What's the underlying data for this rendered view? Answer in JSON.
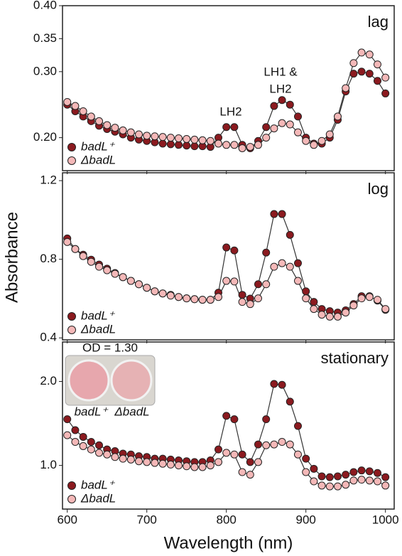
{
  "chart_data": [
    {
      "type": "line",
      "title": "lag",
      "annotations": [
        "LH2",
        "LH1 &",
        "LH2"
      ],
      "legend": "lower left",
      "x": [
        600,
        610,
        620,
        630,
        640,
        650,
        660,
        670,
        680,
        690,
        700,
        710,
        720,
        730,
        740,
        750,
        760,
        770,
        780,
        790,
        800,
        810,
        820,
        830,
        840,
        850,
        860,
        870,
        880,
        890,
        900,
        910,
        920,
        930,
        940,
        950,
        960,
        970,
        980,
        990,
        1000
      ],
      "xlim": [
        594,
        1011
      ],
      "ylim": [
        0.15,
        0.4
      ],
      "yticks": [
        {
          "value": 0.2,
          "label": "0.20"
        },
        {
          "value": 0.3,
          "label": "0.30"
        },
        0.35,
        {
          "value": 0.4,
          "label": "0.40"
        }
      ],
      "series": [
        {
          "name": "badL⁺",
          "color": "#8b1a1f",
          "values": [
            0.25,
            0.24,
            0.232,
            0.225,
            0.218,
            0.213,
            0.209,
            0.205,
            0.2,
            0.197,
            0.195,
            0.193,
            0.191,
            0.19,
            0.189,
            0.188,
            0.187,
            0.187,
            0.186,
            0.2,
            0.216,
            0.216,
            0.189,
            0.184,
            0.195,
            0.216,
            0.248,
            0.257,
            0.25,
            0.232,
            0.2,
            0.191,
            0.191,
            0.2,
            0.227,
            0.27,
            0.297,
            0.3,
            0.297,
            0.286,
            0.267
          ]
        },
        {
          "name": "ΔbadL",
          "color": "#f4b8b8",
          "values": [
            0.254,
            0.248,
            0.24,
            0.232,
            0.225,
            0.219,
            0.215,
            0.211,
            0.208,
            0.205,
            0.203,
            0.202,
            0.201,
            0.2,
            0.199,
            0.198,
            0.197,
            0.196,
            0.195,
            0.191,
            0.189,
            0.189,
            0.184,
            0.186,
            0.189,
            0.2,
            0.214,
            0.222,
            0.22,
            0.208,
            0.195,
            0.189,
            0.195,
            0.205,
            0.232,
            0.275,
            0.313,
            0.329,
            0.326,
            0.311,
            0.291
          ]
        }
      ]
    },
    {
      "type": "line",
      "title": "log",
      "ylabel": "Absorbance",
      "legend": "lower left",
      "x": [
        600,
        610,
        620,
        630,
        640,
        650,
        660,
        670,
        680,
        690,
        700,
        710,
        720,
        730,
        740,
        750,
        760,
        770,
        780,
        790,
        800,
        810,
        820,
        830,
        840,
        850,
        860,
        870,
        880,
        890,
        900,
        910,
        920,
        930,
        940,
        950,
        960,
        970,
        980,
        990,
        1000
      ],
      "xlim": [
        594,
        1011
      ],
      "ylim": [
        0.39,
        1.24
      ],
      "yticks": [
        0.4,
        0.8,
        1.2
      ],
      "series": [
        {
          "name": "badL⁺",
          "color": "#8b1a1f",
          "values": [
            0.906,
            0.852,
            0.823,
            0.798,
            0.773,
            0.752,
            0.73,
            0.709,
            0.69,
            0.673,
            0.655,
            0.637,
            0.626,
            0.619,
            0.608,
            0.601,
            0.597,
            0.594,
            0.594,
            0.63,
            0.86,
            0.845,
            0.619,
            0.6,
            0.673,
            0.834,
            1.03,
            1.03,
            0.924,
            0.78,
            0.637,
            0.583,
            0.547,
            0.536,
            0.529,
            0.54,
            0.572,
            0.612,
            0.612,
            0.59,
            0.543
          ]
        },
        {
          "name": "ΔbadL",
          "color": "#f4b8b8",
          "values": [
            0.888,
            0.852,
            0.816,
            0.787,
            0.762,
            0.744,
            0.726,
            0.709,
            0.69,
            0.673,
            0.655,
            0.637,
            0.626,
            0.615,
            0.608,
            0.601,
            0.597,
            0.594,
            0.594,
            0.608,
            0.69,
            0.687,
            0.583,
            0.572,
            0.601,
            0.673,
            0.762,
            0.78,
            0.762,
            0.69,
            0.601,
            0.547,
            0.518,
            0.508,
            0.508,
            0.529,
            0.565,
            0.601,
            0.608,
            0.594,
            0.547
          ]
        }
      ]
    },
    {
      "type": "line",
      "title": "stationary",
      "xlabel": "Wavelength (nm)",
      "legend": "lower left",
      "inset": {
        "title": "OD = 1.30",
        "labels": [
          "badL⁺",
          "ΔbadL"
        ]
      },
      "x": [
        600,
        610,
        620,
        630,
        640,
        650,
        660,
        670,
        680,
        690,
        700,
        710,
        720,
        730,
        740,
        750,
        760,
        770,
        780,
        790,
        800,
        810,
        820,
        830,
        840,
        850,
        860,
        870,
        880,
        890,
        900,
        910,
        920,
        930,
        940,
        950,
        960,
        970,
        980,
        990,
        1000
      ],
      "xlim": [
        594,
        1011
      ],
      "xticks": [
        600,
        700,
        800,
        900,
        1000
      ],
      "ylim": [
        0.48,
        2.47
      ],
      "yticks": [
        {
          "value": 1.0,
          "label": "1.0"
        },
        {
          "value": 2.0,
          "label": "2.0"
        }
      ],
      "series": [
        {
          "name": "badL⁺",
          "color": "#8b1a1f",
          "values": [
            1.55,
            1.42,
            1.34,
            1.28,
            1.24,
            1.19,
            1.17,
            1.14,
            1.13,
            1.11,
            1.1,
            1.08,
            1.08,
            1.07,
            1.06,
            1.05,
            1.04,
            1.04,
            1.06,
            1.19,
            1.59,
            1.55,
            1.13,
            1.04,
            1.25,
            1.55,
            1.97,
            1.96,
            1.76,
            1.47,
            1.08,
            0.96,
            0.87,
            0.86,
            0.87,
            0.89,
            0.92,
            0.94,
            0.93,
            0.91,
            0.86
          ]
        },
        {
          "name": "ΔbadL",
          "color": "#f4b8b8",
          "values": [
            1.36,
            1.28,
            1.23,
            1.19,
            1.15,
            1.13,
            1.1,
            1.08,
            1.07,
            1.05,
            1.04,
            1.03,
            1.02,
            1.01,
            1.0,
            0.99,
            0.98,
            0.98,
            1.0,
            1.04,
            1.15,
            1.13,
            0.92,
            0.89,
            1.04,
            1.24,
            1.25,
            1.28,
            1.25,
            1.13,
            0.92,
            0.81,
            0.76,
            0.75,
            0.75,
            0.77,
            0.82,
            0.83,
            0.82,
            0.81,
            0.76
          ]
        }
      ]
    }
  ]
}
